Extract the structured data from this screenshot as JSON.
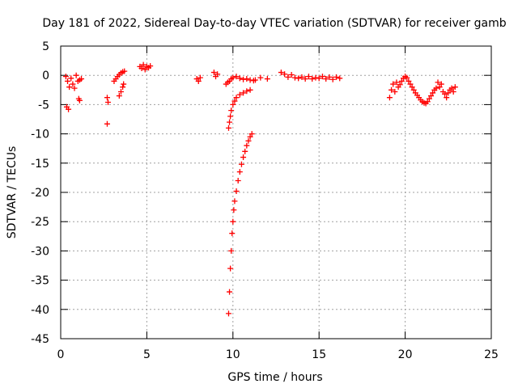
{
  "chart_data": {
    "type": "scatter",
    "title": "Day 181 of 2022, Sidereal Day-to-day VTEC variation (SDTVAR) for receiver gamb",
    "xlabel": "GPS time / hours",
    "ylabel": "SDTVAR / TECUs",
    "xlim": [
      0,
      25
    ],
    "ylim": [
      -45,
      5
    ],
    "xticks": [
      0,
      5,
      10,
      15,
      20,
      25
    ],
    "yticks": [
      5,
      0,
      -5,
      -10,
      -15,
      -20,
      -25,
      -30,
      -35,
      -40,
      -45
    ],
    "grid": true,
    "marker": "+",
    "color": "#ff0000",
    "series": [
      {
        "name": "SDTVAR",
        "points": [
          [
            0.3,
            -0.2
          ],
          [
            0.4,
            -1.0
          ],
          [
            0.5,
            -2.0
          ],
          [
            0.6,
            -0.5
          ],
          [
            0.7,
            -1.5
          ],
          [
            0.8,
            -2.2
          ],
          [
            0.9,
            0.0
          ],
          [
            1.0,
            -1.0
          ],
          [
            1.1,
            -0.8
          ],
          [
            1.2,
            -0.6
          ],
          [
            0.35,
            -5.4
          ],
          [
            0.45,
            -5.8
          ],
          [
            1.05,
            -4.0
          ],
          [
            1.1,
            -4.3
          ],
          [
            2.7,
            -3.8
          ],
          [
            2.75,
            -4.6
          ],
          [
            2.7,
            -8.3
          ],
          [
            3.1,
            -1.0
          ],
          [
            3.2,
            -0.6
          ],
          [
            3.3,
            -0.2
          ],
          [
            3.4,
            0.1
          ],
          [
            3.5,
            0.4
          ],
          [
            3.6,
            0.6
          ],
          [
            3.7,
            0.7
          ],
          [
            3.4,
            -3.5
          ],
          [
            3.5,
            -2.8
          ],
          [
            3.6,
            -2.0
          ],
          [
            3.65,
            -1.5
          ],
          [
            4.6,
            1.5
          ],
          [
            4.7,
            1.2
          ],
          [
            4.8,
            1.8
          ],
          [
            4.9,
            1.0
          ],
          [
            5.0,
            1.5
          ],
          [
            5.1,
            1.3
          ],
          [
            5.2,
            1.6
          ],
          [
            7.9,
            -0.6
          ],
          [
            8.0,
            -1.0
          ],
          [
            8.1,
            -0.4
          ],
          [
            8.9,
            0.5
          ],
          [
            9.0,
            -0.2
          ],
          [
            9.1,
            0.2
          ],
          [
            9.6,
            -1.5
          ],
          [
            9.7,
            -1.2
          ],
          [
            9.8,
            -1.0
          ],
          [
            9.9,
            -0.6
          ],
          [
            10.0,
            -0.4
          ],
          [
            10.2,
            -0.2
          ],
          [
            10.4,
            -0.5
          ],
          [
            10.6,
            -0.7
          ],
          [
            10.8,
            -0.6
          ],
          [
            11.0,
            -0.8
          ],
          [
            11.2,
            -0.9
          ],
          [
            9.75,
            -9.0
          ],
          [
            9.8,
            -8.0
          ],
          [
            9.85,
            -7.0
          ],
          [
            9.9,
            -6.0
          ],
          [
            10.0,
            -5.0
          ],
          [
            10.1,
            -4.4
          ],
          [
            10.2,
            -3.8
          ],
          [
            10.4,
            -3.3
          ],
          [
            10.6,
            -3.0
          ],
          [
            10.8,
            -2.7
          ],
          [
            11.0,
            -2.5
          ],
          [
            9.75,
            -40.7
          ],
          [
            9.8,
            -37.0
          ],
          [
            9.85,
            -33.0
          ],
          [
            9.9,
            -30.0
          ],
          [
            9.95,
            -27.0
          ],
          [
            10.0,
            -25.0
          ],
          [
            10.05,
            -23.0
          ],
          [
            10.1,
            -21.5
          ],
          [
            10.2,
            -19.8
          ],
          [
            10.3,
            -18.0
          ],
          [
            10.4,
            -16.5
          ],
          [
            10.5,
            -15.2
          ],
          [
            10.6,
            -14.0
          ],
          [
            10.7,
            -13.0
          ],
          [
            10.8,
            -12.0
          ],
          [
            10.9,
            -11.2
          ],
          [
            11.0,
            -10.5
          ],
          [
            11.1,
            -10.0
          ],
          [
            11.3,
            -0.8
          ],
          [
            11.6,
            -0.4
          ],
          [
            12.0,
            -0.6
          ],
          [
            12.8,
            0.5
          ],
          [
            13.0,
            0.2
          ],
          [
            13.2,
            -0.3
          ],
          [
            13.4,
            0.1
          ],
          [
            13.6,
            -0.4
          ],
          [
            13.8,
            -0.5
          ],
          [
            14.0,
            -0.3
          ],
          [
            14.2,
            -0.6
          ],
          [
            14.4,
            -0.2
          ],
          [
            14.6,
            -0.6
          ],
          [
            14.8,
            -0.4
          ],
          [
            15.0,
            -0.5
          ],
          [
            15.2,
            -0.2
          ],
          [
            15.4,
            -0.6
          ],
          [
            15.6,
            -0.3
          ],
          [
            15.8,
            -0.7
          ],
          [
            16.0,
            -0.3
          ],
          [
            16.2,
            -0.5
          ],
          [
            19.1,
            -3.8
          ],
          [
            19.2,
            -2.5
          ],
          [
            19.3,
            -1.5
          ],
          [
            19.4,
            -2.8
          ],
          [
            19.5,
            -1.2
          ],
          [
            19.6,
            -2.0
          ],
          [
            19.7,
            -1.6
          ],
          [
            19.8,
            -1.0
          ],
          [
            19.9,
            -0.5
          ],
          [
            20.0,
            -0.2
          ],
          [
            20.1,
            -0.4
          ],
          [
            20.2,
            -1.0
          ],
          [
            20.3,
            -1.5
          ],
          [
            20.4,
            -2.0
          ],
          [
            20.5,
            -2.5
          ],
          [
            20.6,
            -3.0
          ],
          [
            20.7,
            -3.4
          ],
          [
            20.8,
            -3.8
          ],
          [
            20.9,
            -4.2
          ],
          [
            21.0,
            -4.5
          ],
          [
            21.1,
            -4.7
          ],
          [
            21.2,
            -4.8
          ],
          [
            21.3,
            -4.5
          ],
          [
            21.4,
            -4.0
          ],
          [
            21.5,
            -3.5
          ],
          [
            21.6,
            -3.0
          ],
          [
            21.7,
            -2.5
          ],
          [
            21.8,
            -2.2
          ],
          [
            21.9,
            -1.2
          ],
          [
            22.0,
            -2.0
          ],
          [
            22.1,
            -1.5
          ],
          [
            22.2,
            -2.8
          ],
          [
            22.3,
            -3.2
          ],
          [
            22.4,
            -3.8
          ],
          [
            22.5,
            -3.0
          ],
          [
            22.6,
            -2.5
          ],
          [
            22.7,
            -2.2
          ],
          [
            22.8,
            -2.8
          ],
          [
            22.9,
            -2.0
          ]
        ]
      }
    ]
  }
}
